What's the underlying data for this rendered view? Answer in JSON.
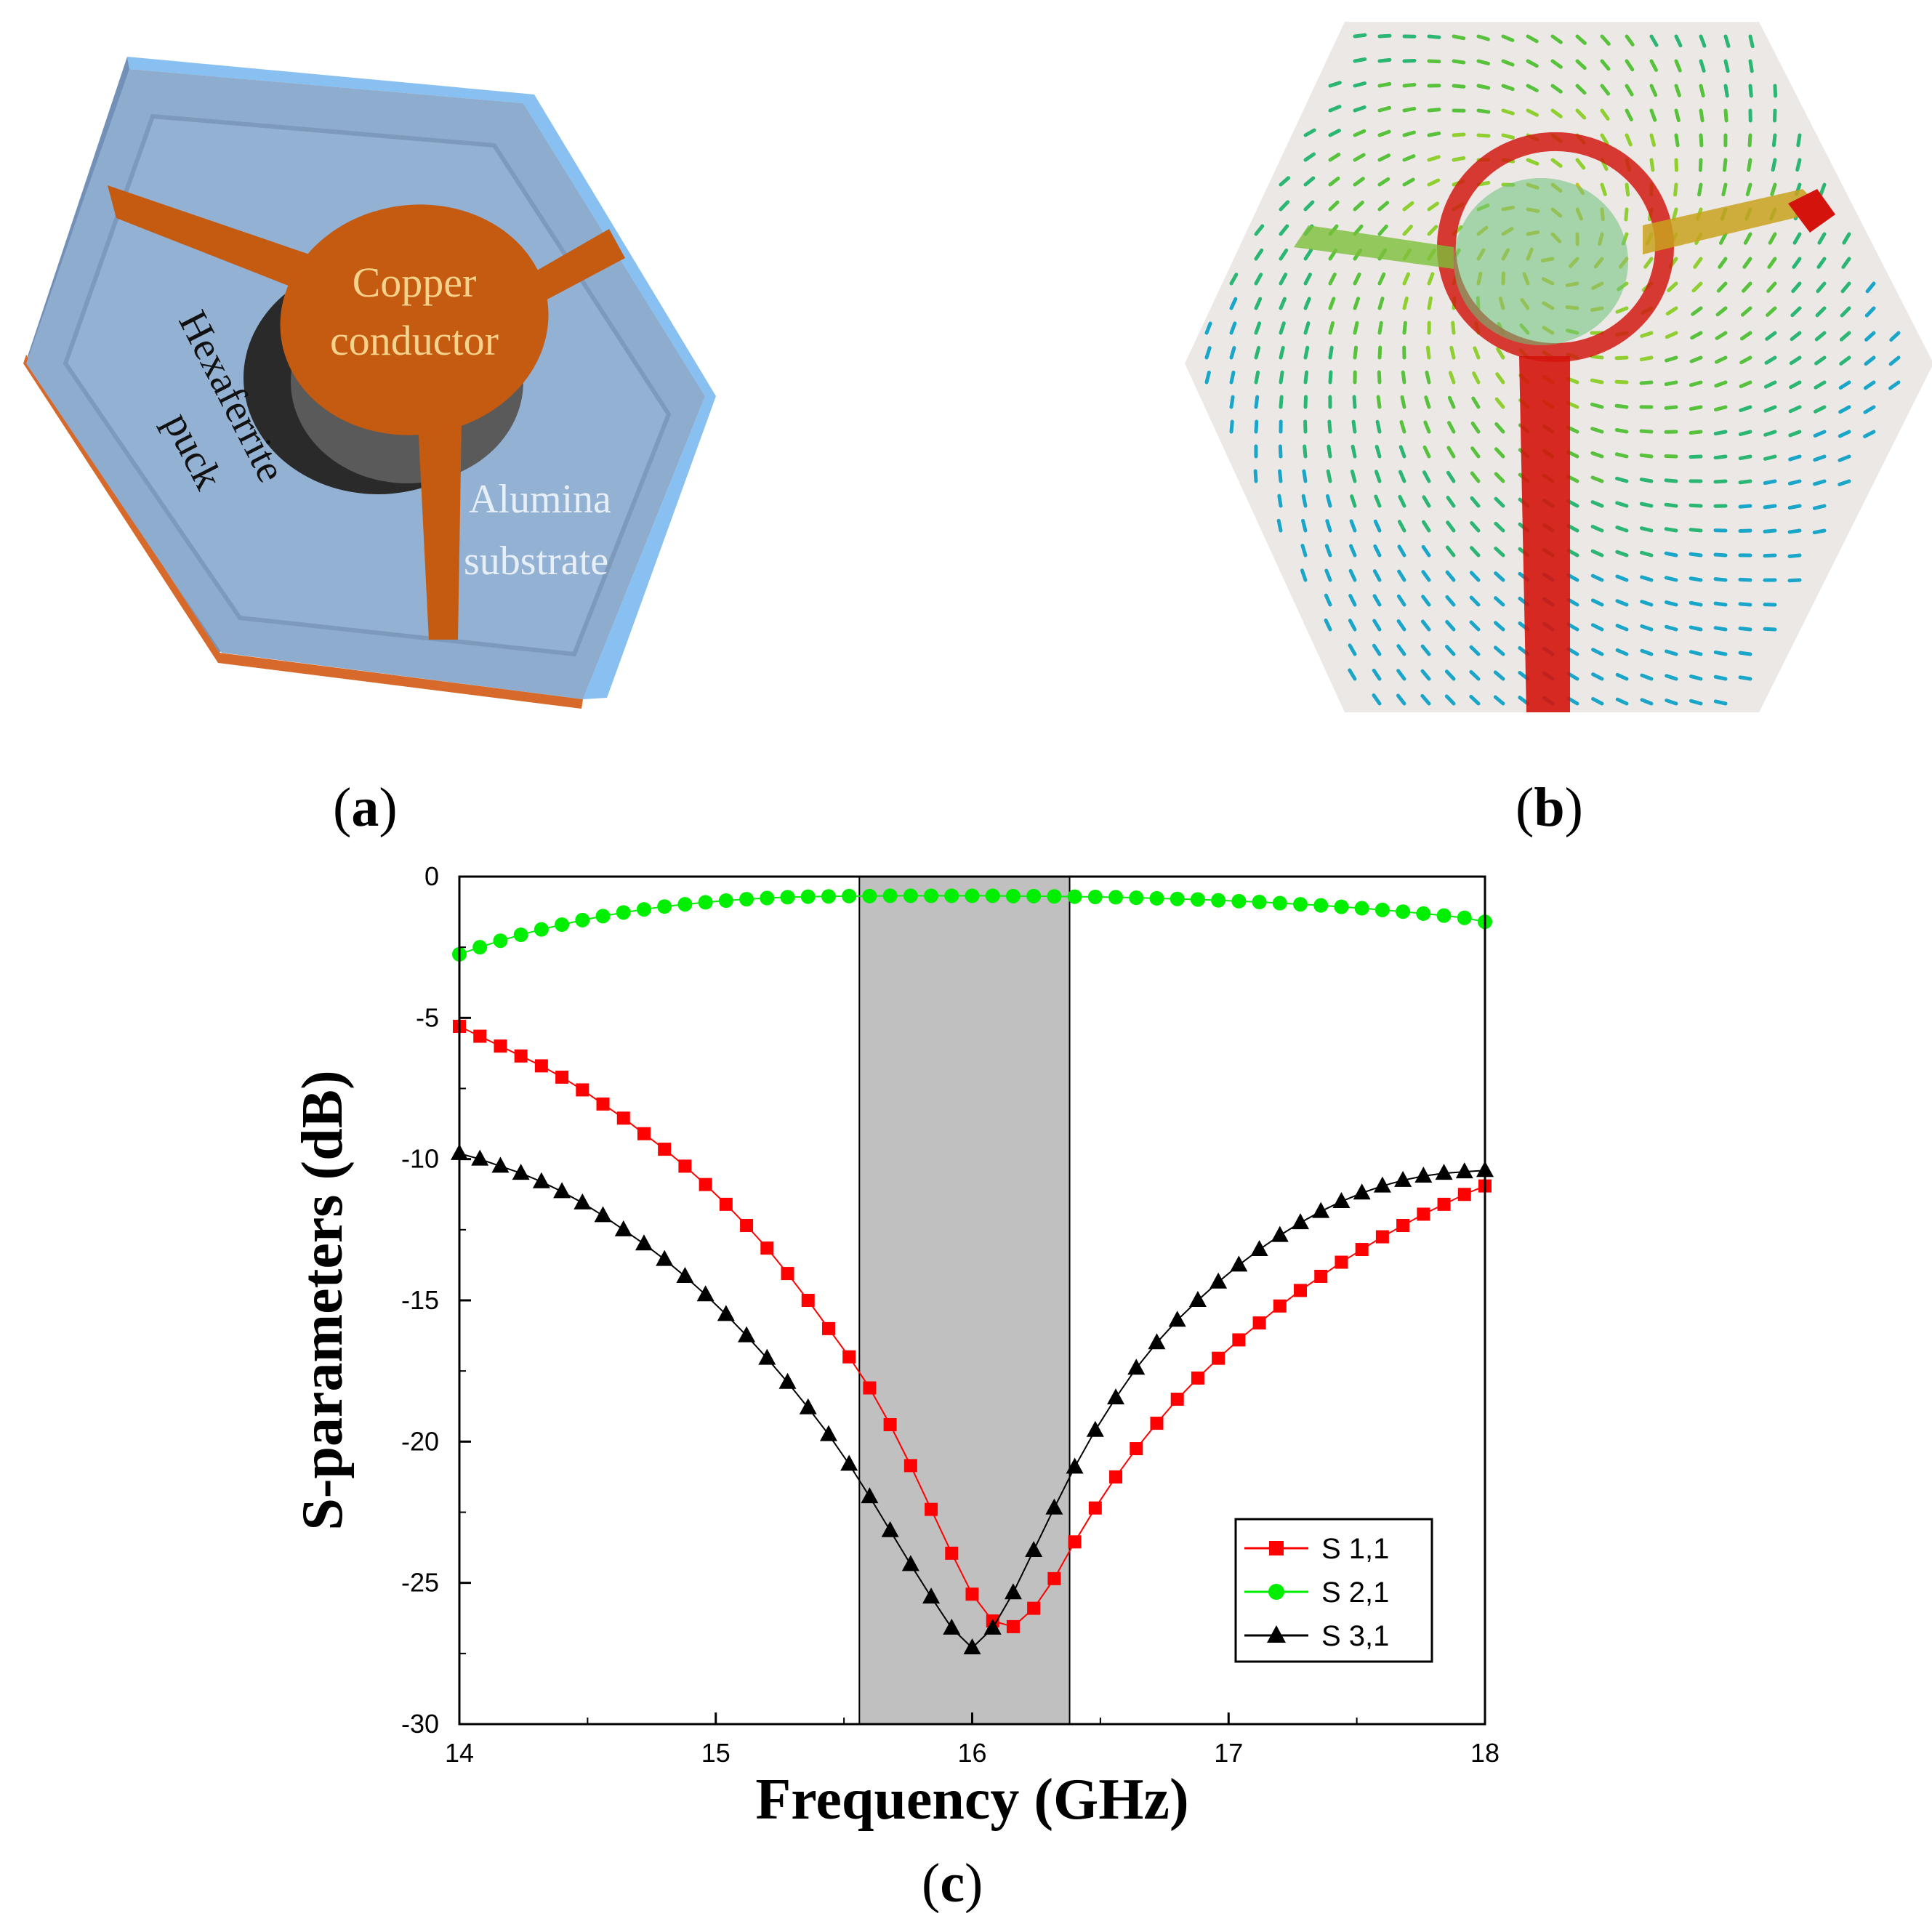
{
  "panels": {
    "a": {
      "label_letter": "a",
      "annotations": {
        "copper_line1": "Copper",
        "copper_line2": "conductor",
        "hexaferrite_line1": "Hexaferrite",
        "hexaferrite_line2": "puck",
        "alumina_line1": "Alumina",
        "alumina_line2": "substrate"
      }
    },
    "b": {
      "label_letter": "b"
    },
    "c": {
      "label_letter": "c"
    }
  },
  "colors": {
    "alumina_top": "#8faed0",
    "alumina_edge": "#8fc1f0",
    "copper": "#c55a11",
    "s11": "#ff0000",
    "s21": "#00ee00",
    "s31": "#000000",
    "band": "#c0c0c0"
  },
  "chart_data": {
    "type": "line",
    "title": "",
    "xlabel": "Frequency (GHz)",
    "ylabel": "S-parameters (dB)",
    "xlim": [
      14,
      18
    ],
    "ylim": [
      -30,
      0
    ],
    "x_ticks": [
      14,
      15,
      16,
      17,
      18
    ],
    "y_ticks": [
      0,
      -5,
      -10,
      -15,
      -20,
      -25,
      -30
    ],
    "shaded_band": [
      15.56,
      16.38
    ],
    "legend_position": "lower-right",
    "x": [
      14.0,
      14.08,
      14.16,
      14.24,
      14.32,
      14.4,
      14.48,
      14.56,
      14.64,
      14.72,
      14.8,
      14.88,
      14.96,
      15.04,
      15.12,
      15.2,
      15.28,
      15.36,
      15.44,
      15.52,
      15.6,
      15.68,
      15.76,
      15.84,
      15.92,
      16.0,
      16.08,
      16.16,
      16.24,
      16.32,
      16.4,
      16.48,
      16.56,
      16.64,
      16.72,
      16.8,
      16.88,
      16.96,
      17.04,
      17.12,
      17.2,
      17.28,
      17.36,
      17.44,
      17.52,
      17.6,
      17.68,
      17.76,
      17.84,
      17.92,
      18.0
    ],
    "series": [
      {
        "name": "S 1,1",
        "marker": "square",
        "values": [
          -5.3,
          -5.65,
          -6.0,
          -6.35,
          -6.7,
          -7.1,
          -7.55,
          -8.05,
          -8.55,
          -9.1,
          -9.65,
          -10.25,
          -10.9,
          -11.6,
          -12.35,
          -13.15,
          -14.05,
          -15.0,
          -16.0,
          -17.0,
          -18.1,
          -19.4,
          -20.85,
          -22.4,
          -23.95,
          -25.4,
          -26.35,
          -26.55,
          -25.9,
          -24.85,
          -23.55,
          -22.35,
          -21.25,
          -20.25,
          -19.35,
          -18.5,
          -17.75,
          -17.05,
          -16.4,
          -15.8,
          -15.2,
          -14.65,
          -14.15,
          -13.65,
          -13.2,
          -12.75,
          -12.35,
          -11.95,
          -11.6,
          -11.25,
          -10.95
        ]
      },
      {
        "name": "S 2,1",
        "marker": "circle",
        "values": [
          -2.75,
          -2.5,
          -2.27,
          -2.06,
          -1.87,
          -1.7,
          -1.54,
          -1.4,
          -1.27,
          -1.16,
          -1.06,
          -0.98,
          -0.91,
          -0.85,
          -0.8,
          -0.76,
          -0.73,
          -0.71,
          -0.7,
          -0.69,
          -0.69,
          -0.68,
          -0.68,
          -0.68,
          -0.68,
          -0.68,
          -0.68,
          -0.69,
          -0.69,
          -0.7,
          -0.71,
          -0.72,
          -0.73,
          -0.75,
          -0.77,
          -0.79,
          -0.81,
          -0.84,
          -0.87,
          -0.9,
          -0.94,
          -0.98,
          -1.02,
          -1.07,
          -1.12,
          -1.18,
          -1.24,
          -1.31,
          -1.38,
          -1.46,
          -1.6
        ]
      },
      {
        "name": "S 3,1",
        "marker": "triangle",
        "values": [
          -9.8,
          -10.0,
          -10.25,
          -10.5,
          -10.8,
          -11.15,
          -11.55,
          -12.0,
          -12.5,
          -13.0,
          -13.55,
          -14.15,
          -14.8,
          -15.5,
          -16.25,
          -17.05,
          -17.9,
          -18.8,
          -19.75,
          -20.8,
          -21.95,
          -23.15,
          -24.35,
          -25.5,
          -26.6,
          -27.3,
          -26.6,
          -25.35,
          -23.85,
          -22.35,
          -20.9,
          -19.6,
          -18.45,
          -17.4,
          -16.5,
          -15.7,
          -15.0,
          -14.35,
          -13.75,
          -13.2,
          -12.7,
          -12.25,
          -11.85,
          -11.5,
          -11.2,
          -10.95,
          -10.75,
          -10.6,
          -10.5,
          -10.45,
          -10.4
        ]
      }
    ]
  }
}
